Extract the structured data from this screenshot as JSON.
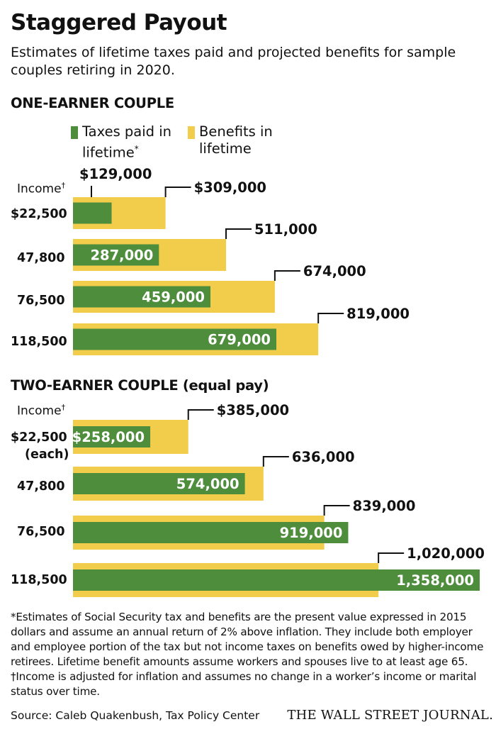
{
  "title": "Staggered Payout",
  "subtitle": "Estimates of lifetime taxes paid and projected benefits for sample couples retiring in 2020.",
  "legend": {
    "taxes": "Taxes paid in lifetime",
    "taxes_mark": "*",
    "benefits": "Benefits in lifetime"
  },
  "colors": {
    "taxes": "#4e8d3b",
    "benefits": "#f2cd4c"
  },
  "chart_data": [
    {
      "type": "bar",
      "title": "ONE-EARNER COUPLE",
      "category_header": "Income",
      "category_header_mark": "†",
      "categories": [
        "$22,500",
        "47,800",
        "76,500",
        "118,500"
      ],
      "series": [
        {
          "name": "Taxes paid in lifetime",
          "values": [
            129000,
            287000,
            459000,
            679000
          ],
          "labels": [
            "$129,000",
            "287,000",
            "459,000",
            "679,000"
          ]
        },
        {
          "name": "Benefits in lifetime",
          "values": [
            309000,
            511000,
            674000,
            819000
          ],
          "labels": [
            "$309,000",
            "511,000",
            "674,000",
            "819,000"
          ]
        }
      ]
    },
    {
      "type": "bar",
      "title": "TWO-EARNER COUPLE (equal pay)",
      "category_header": "Income",
      "category_header_mark": "†",
      "categories": [
        "$22,500",
        "47,800",
        "76,500",
        "118,500"
      ],
      "category_subnote": "(each)",
      "series": [
        {
          "name": "Taxes paid in lifetime",
          "values": [
            258000,
            574000,
            919000,
            1358000
          ],
          "labels": [
            "$258,000",
            "574,000",
            "919,000",
            "1,358,000"
          ]
        },
        {
          "name": "Benefits in lifetime",
          "values": [
            385000,
            636000,
            839000,
            1020000
          ],
          "labels": [
            "$385,000",
            "636,000",
            "839,000",
            "1,020,000"
          ]
        }
      ]
    }
  ],
  "footnotes": [
    "*Estimates of Social Security tax and benefits are the present value expressed in 2015 dollars and assume an annual return of 2% above inflation. They include both employer and employee portion of the tax but not income taxes on benefits owed by higher-income retirees. Lifetime benefit amounts assume workers and spouses live to at least age 65.",
    "†Income is adjusted for inflation and assumes no change in a worker’s income or marital status over time."
  ],
  "source": "Source: Caleb Quakenbush, Tax Policy Center",
  "publisher": "THE WALL STREET JOURNAL."
}
